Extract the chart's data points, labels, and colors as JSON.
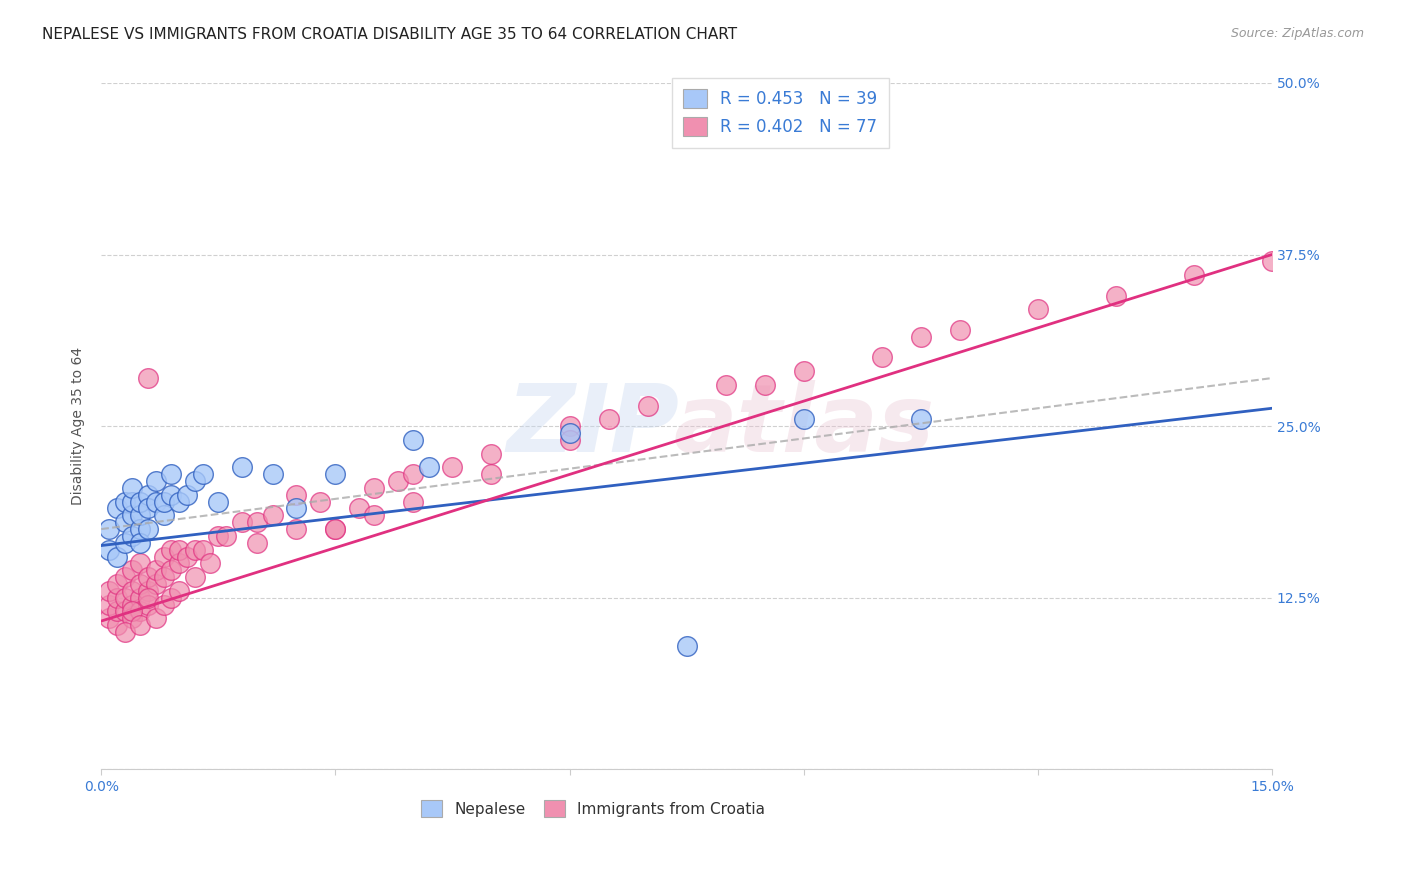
{
  "title": "NEPALESE VS IMMIGRANTS FROM CROATIA DISABILITY AGE 35 TO 64 CORRELATION CHART",
  "source": "Source: ZipAtlas.com",
  "ylabel": "Disability Age 35 to 64",
  "xlim": [
    0.0,
    0.15
  ],
  "ylim": [
    0.0,
    0.5
  ],
  "xticks": [
    0.0,
    0.03,
    0.06,
    0.09,
    0.12,
    0.15
  ],
  "xtick_labels": [
    "0.0%",
    "",
    "",
    "",
    "",
    "15.0%"
  ],
  "ytick_labels": [
    "",
    "12.5%",
    "25.0%",
    "37.5%",
    "50.0%"
  ],
  "yticks": [
    0.0,
    0.125,
    0.25,
    0.375,
    0.5
  ],
  "legend1_label": "R = 0.453   N = 39",
  "legend2_label": "R = 0.402   N = 77",
  "color_nepalese": "#a8c8f8",
  "color_croatia": "#f090b0",
  "color_nepalese_line": "#3060c0",
  "color_croatia_line": "#e03080",
  "color_dashed": "#aaaaaa",
  "nepalese_x": [
    0.001,
    0.001,
    0.002,
    0.002,
    0.003,
    0.003,
    0.003,
    0.004,
    0.004,
    0.004,
    0.004,
    0.005,
    0.005,
    0.005,
    0.005,
    0.006,
    0.006,
    0.006,
    0.007,
    0.007,
    0.008,
    0.008,
    0.009,
    0.009,
    0.01,
    0.011,
    0.012,
    0.013,
    0.015,
    0.018,
    0.022,
    0.025,
    0.03,
    0.04,
    0.042,
    0.06,
    0.075,
    0.09,
    0.105
  ],
  "nepalese_y": [
    0.16,
    0.175,
    0.155,
    0.19,
    0.165,
    0.18,
    0.195,
    0.17,
    0.185,
    0.195,
    0.205,
    0.175,
    0.185,
    0.195,
    0.165,
    0.2,
    0.175,
    0.19,
    0.195,
    0.21,
    0.185,
    0.195,
    0.2,
    0.215,
    0.195,
    0.2,
    0.21,
    0.215,
    0.195,
    0.22,
    0.215,
    0.19,
    0.215,
    0.24,
    0.22,
    0.245,
    0.09,
    0.255,
    0.255
  ],
  "croatia_x": [
    0.001,
    0.001,
    0.001,
    0.002,
    0.002,
    0.002,
    0.002,
    0.003,
    0.003,
    0.003,
    0.004,
    0.004,
    0.004,
    0.004,
    0.005,
    0.005,
    0.005,
    0.005,
    0.006,
    0.006,
    0.006,
    0.006,
    0.007,
    0.007,
    0.008,
    0.008,
    0.009,
    0.009,
    0.01,
    0.01,
    0.011,
    0.012,
    0.013,
    0.015,
    0.016,
    0.018,
    0.02,
    0.022,
    0.025,
    0.028,
    0.03,
    0.033,
    0.035,
    0.038,
    0.04,
    0.045,
    0.05,
    0.06,
    0.065,
    0.07,
    0.08,
    0.085,
    0.09,
    0.1,
    0.105,
    0.11,
    0.12,
    0.13,
    0.14,
    0.15,
    0.003,
    0.004,
    0.005,
    0.006,
    0.007,
    0.008,
    0.009,
    0.01,
    0.012,
    0.014,
    0.02,
    0.025,
    0.03,
    0.035,
    0.04,
    0.05,
    0.06
  ],
  "croatia_y": [
    0.11,
    0.12,
    0.13,
    0.105,
    0.115,
    0.125,
    0.135,
    0.115,
    0.125,
    0.14,
    0.12,
    0.13,
    0.145,
    0.11,
    0.125,
    0.135,
    0.15,
    0.115,
    0.13,
    0.14,
    0.285,
    0.12,
    0.135,
    0.145,
    0.14,
    0.155,
    0.145,
    0.16,
    0.15,
    0.16,
    0.155,
    0.16,
    0.16,
    0.17,
    0.17,
    0.18,
    0.18,
    0.185,
    0.2,
    0.195,
    0.175,
    0.19,
    0.205,
    0.21,
    0.215,
    0.22,
    0.23,
    0.25,
    0.255,
    0.265,
    0.28,
    0.28,
    0.29,
    0.3,
    0.315,
    0.32,
    0.335,
    0.345,
    0.36,
    0.37,
    0.1,
    0.115,
    0.105,
    0.125,
    0.11,
    0.12,
    0.125,
    0.13,
    0.14,
    0.15,
    0.165,
    0.175,
    0.175,
    0.185,
    0.195,
    0.215,
    0.24
  ],
  "nepalese_line_x0": 0.0,
  "nepalese_line_x1": 0.15,
  "nepalese_line_y0": 0.163,
  "nepalese_line_y1": 0.263,
  "nepalese_dash_line_y0": 0.175,
  "nepalese_dash_line_y1": 0.285,
  "croatia_line_y0": 0.108,
  "croatia_line_y1": 0.375,
  "title_fontsize": 11,
  "axis_label_fontsize": 10,
  "tick_fontsize": 10,
  "legend_fontsize": 12
}
